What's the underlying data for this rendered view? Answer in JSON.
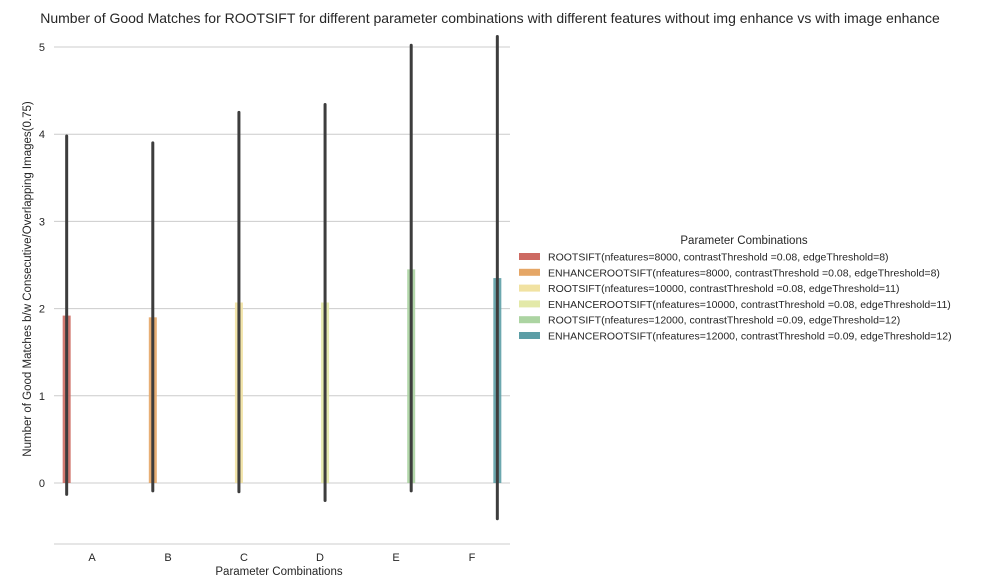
{
  "chart_data": {
    "type": "bar",
    "title": "Number of Good Matches for ROOTSIFT for different parameter combinations with different features without img enhance vs with image enhance",
    "xlabel": "Parameter Combinations",
    "ylabel": "Number of Good Matches b/w Consecutive/Overlapping Images(0.75)",
    "categories": [
      "A",
      "B",
      "C",
      "D",
      "E",
      "F"
    ],
    "yticks": [
      0,
      1,
      2,
      3,
      4,
      5
    ],
    "ylim": [
      -0.7,
      5.1
    ],
    "grid": "horizontal",
    "legend": {
      "title": "Parameter Combinations",
      "placement": "center-right"
    },
    "series": [
      {
        "name": "ROOTSIFT(nfeatures=8000, contrastThreshold =0.08, edgeThreshold=8)",
        "color": "#cd6a62",
        "category": "A",
        "value": 1.92,
        "ci": [
          -0.13,
          3.98
        ]
      },
      {
        "name": "ENHANCEROOTSIFT(nfeatures=8000, contrastThreshold =0.08, edgeThreshold=8)",
        "color": "#e5a666",
        "category": "B",
        "value": 1.9,
        "ci": [
          -0.09,
          3.9
        ]
      },
      {
        "name": "ROOTSIFT(nfeatures=10000, contrastThreshold =0.08, edgeThreshold=11)",
        "color": "#f1e2a2",
        "category": "C",
        "value": 2.07,
        "ci": [
          -0.1,
          4.25
        ]
      },
      {
        "name": "ENHANCEROOTSIFT(nfeatures=10000, contrastThreshold =0.08, edgeThreshold=11)",
        "color": "#e3e9a8",
        "category": "D",
        "value": 2.07,
        "ci": [
          -0.2,
          4.34
        ]
      },
      {
        "name": "ROOTSIFT(nfeatures=12000, contrastThreshold =0.09, edgeThreshold=12)",
        "color": "#acd4a2",
        "category": "E",
        "value": 2.45,
        "ci": [
          -0.09,
          5.02
        ]
      },
      {
        "name": "ENHANCEROOTSIFT(nfeatures=12000, contrastThreshold =0.09, edgeThreshold=12)",
        "color": "#5c9ea6",
        "category": "F",
        "value": 2.35,
        "ci": [
          -0.41,
          5.12
        ]
      }
    ]
  }
}
